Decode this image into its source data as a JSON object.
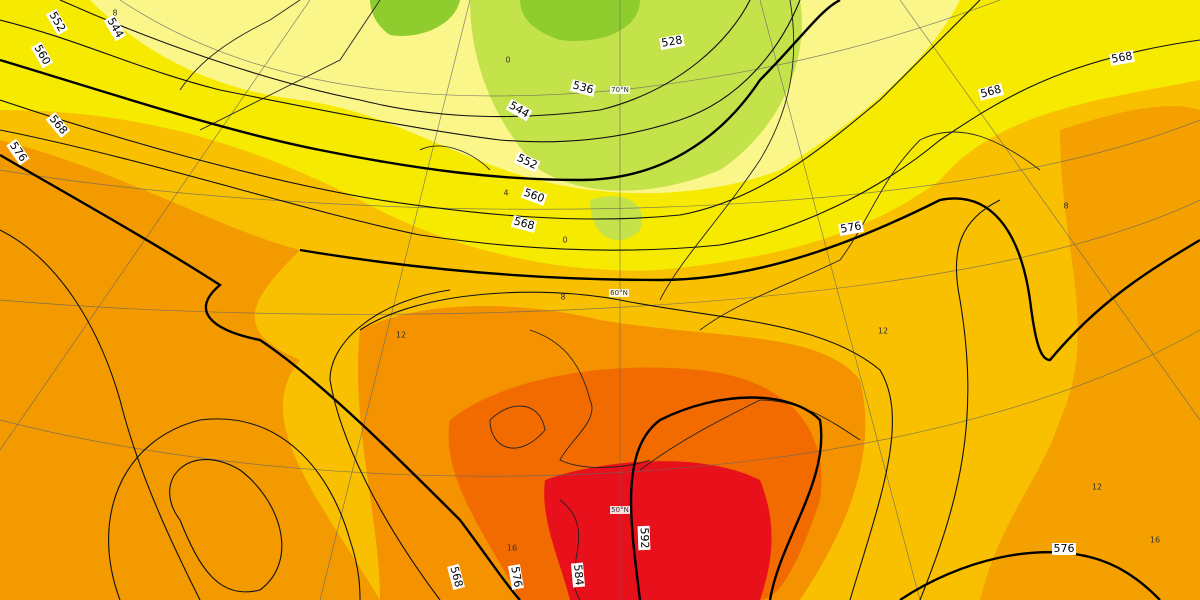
{
  "contour_labels": [
    "552",
    "544",
    "560",
    "568",
    "576",
    "536",
    "528",
    "544",
    "552",
    "560",
    "568",
    "576",
    "568",
    "568",
    "568",
    "576",
    "584",
    "592",
    "576"
  ],
  "latitude_labels": [
    "70°N",
    "60°N",
    "50°N"
  ],
  "thickness_labels": [
    "12",
    "8",
    "4",
    "0",
    "8",
    "12",
    "8",
    "12",
    "16",
    "16",
    "0"
  ]
}
